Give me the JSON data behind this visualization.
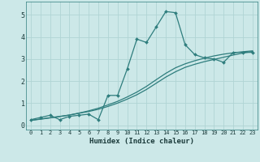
{
  "xlabel": "Humidex (Indice chaleur)",
  "ylabel": "",
  "background_color": "#cce8e8",
  "grid_color": "#b0d4d4",
  "line_color": "#2e7d7d",
  "xlim": [
    -0.5,
    23.5
  ],
  "ylim": [
    -0.2,
    5.6
  ],
  "xticks": [
    0,
    1,
    2,
    3,
    4,
    5,
    6,
    7,
    8,
    9,
    10,
    11,
    12,
    13,
    14,
    15,
    16,
    17,
    18,
    19,
    20,
    21,
    22,
    23
  ],
  "yticks": [
    0,
    1,
    2,
    3,
    4,
    5
  ],
  "line1_x": [
    0,
    1,
    2,
    3,
    4,
    5,
    6,
    7,
    8,
    9,
    10,
    11,
    12,
    13,
    14,
    15,
    16,
    17,
    18,
    19,
    20,
    21,
    22,
    23
  ],
  "line1_y": [
    0.25,
    0.35,
    0.45,
    0.25,
    0.4,
    0.45,
    0.5,
    0.25,
    1.35,
    1.35,
    2.55,
    3.9,
    3.75,
    4.45,
    5.15,
    5.1,
    3.65,
    3.2,
    3.05,
    3.0,
    2.85,
    3.3,
    3.3,
    3.3
  ],
  "line2_x": [
    0,
    1,
    2,
    3,
    4,
    5,
    6,
    7,
    8,
    9,
    10,
    11,
    12,
    13,
    14,
    15,
    16,
    17,
    18,
    19,
    20,
    21,
    22,
    23
  ],
  "line2_y": [
    0.22,
    0.28,
    0.34,
    0.4,
    0.46,
    0.54,
    0.62,
    0.72,
    0.85,
    1.0,
    1.18,
    1.38,
    1.62,
    1.9,
    2.18,
    2.42,
    2.62,
    2.76,
    2.88,
    2.98,
    3.08,
    3.18,
    3.27,
    3.34
  ],
  "line3_x": [
    0,
    1,
    2,
    3,
    4,
    5,
    6,
    7,
    8,
    9,
    10,
    11,
    12,
    13,
    14,
    15,
    16,
    17,
    18,
    19,
    20,
    21,
    22,
    23
  ],
  "line3_y": [
    0.22,
    0.27,
    0.33,
    0.39,
    0.46,
    0.55,
    0.65,
    0.77,
    0.92,
    1.08,
    1.28,
    1.5,
    1.76,
    2.06,
    2.35,
    2.6,
    2.78,
    2.92,
    3.04,
    3.14,
    3.22,
    3.28,
    3.33,
    3.37
  ]
}
